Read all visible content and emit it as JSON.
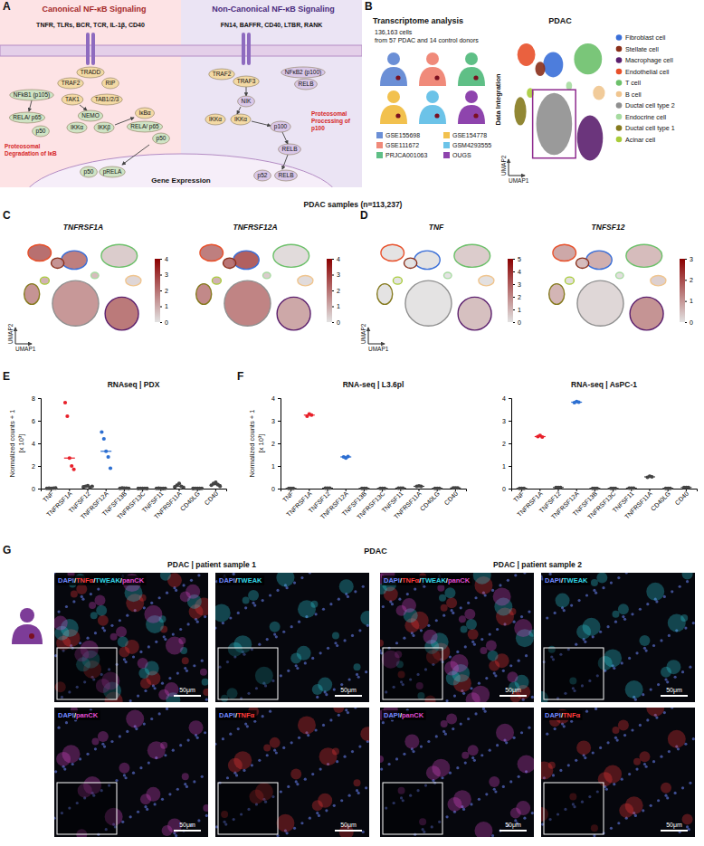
{
  "chart_data": [
    {
      "type": "dot",
      "title": "RNAseq | PDX",
      "ylabel": "Normalized counts + 1",
      "ylabel_unit": "[x 10³]",
      "categories": [
        "TNF",
        "TNFRSF1A",
        "TNFSF12",
        "TNFRSF12A",
        "TNFSF13B",
        "TNFRSF13C",
        "TNFSF11",
        "TNFRSF11A",
        "CD40LG",
        "CD40"
      ],
      "values": [
        [
          0.02,
          0.03,
          0.02,
          0.04,
          0.05
        ],
        [
          7.6,
          6.4,
          2.7,
          2.0,
          1.7
        ],
        [
          0.15,
          0.2,
          0.25,
          0.1,
          0.2
        ],
        [
          5.0,
          4.4,
          3.3,
          2.8,
          1.8
        ],
        [
          0.02,
          0.05,
          0.03,
          0.04,
          0.02
        ],
        [
          0.01,
          0.02,
          0.01,
          0.02,
          0.01
        ],
        [
          0.02,
          0.03,
          0.02,
          0.01,
          0.02
        ],
        [
          0.15,
          0.3,
          0.45,
          0.2,
          0.1
        ],
        [
          0.01,
          0.02,
          0.01,
          0.01,
          0.02
        ],
        [
          0.3,
          0.45,
          0.55,
          0.35,
          0.2
        ]
      ],
      "medians": [
        0.03,
        2.7,
        0.2,
        3.3,
        0.03,
        0.01,
        0.02,
        0.2,
        0.01,
        0.35
      ],
      "colors": [
        "#444444",
        "#e8202a",
        "#444444",
        "#2d6fd1",
        "#444444",
        "#444444",
        "#444444",
        "#444444",
        "#444444",
        "#444444"
      ],
      "ylim": [
        0,
        8
      ],
      "yticks": [
        0,
        2,
        4,
        6,
        8
      ]
    },
    {
      "type": "dot",
      "title": "RNA-seq | L3.6pl",
      "ylabel": "Normalized counts + 1",
      "ylabel_unit": "[x 10³]",
      "categories": [
        "TNF",
        "TNFRSF1A",
        "TNFSF12",
        "TNFRSF12A",
        "TNFSF13B",
        "TNFRSF13C",
        "TNFSF11",
        "TNFRSF11A",
        "CD40LG",
        "CD40"
      ],
      "values": [
        [
          0.01,
          0.01,
          0.01
        ],
        [
          3.2,
          3.3,
          3.25
        ],
        [
          0.02,
          0.02,
          0.02
        ],
        [
          1.4,
          1.35,
          1.42
        ],
        [
          0.01,
          0.01,
          0.01
        ],
        [
          0.01,
          0.01,
          0.01
        ],
        [
          0.02,
          0.02,
          0.02
        ],
        [
          0.1,
          0.12,
          0.1
        ],
        [
          0.01,
          0.01,
          0.01
        ],
        [
          0.03,
          0.03,
          0.03
        ]
      ],
      "medians": [
        0.01,
        3.25,
        0.02,
        1.4,
        0.01,
        0.01,
        0.02,
        0.1,
        0.01,
        0.03
      ],
      "colors": [
        "#444444",
        "#e8202a",
        "#444444",
        "#2d6fd1",
        "#444444",
        "#444444",
        "#444444",
        "#444444",
        "#444444",
        "#444444"
      ],
      "ylim": [
        0,
        4
      ],
      "yticks": [
        0,
        1,
        2,
        3,
        4
      ]
    },
    {
      "type": "dot",
      "title": "RNA-seq | AsPC-1",
      "categories": [
        "TNF",
        "TNFRSF1A",
        "TNFSF12",
        "TNFRSF12A",
        "TNFSF13B",
        "TNFRSF13C",
        "TNFSF11",
        "TNFRSF11A",
        "CD40LG",
        "CD40"
      ],
      "values": [
        [
          0.01,
          0.01,
          0.01
        ],
        [
          2.3,
          2.35,
          2.28
        ],
        [
          0.05,
          0.05,
          0.05
        ],
        [
          3.8,
          3.85,
          3.82
        ],
        [
          0.01,
          0.01,
          0.01
        ],
        [
          0.01,
          0.01,
          0.01
        ],
        [
          0.02,
          0.02,
          0.02
        ],
        [
          0.5,
          0.55,
          0.52
        ],
        [
          0.01,
          0.01,
          0.01
        ],
        [
          0.05,
          0.05,
          0.05
        ]
      ],
      "medians": [
        0.01,
        2.3,
        0.05,
        3.82,
        0.01,
        0.01,
        0.02,
        0.52,
        0.01,
        0.05
      ],
      "colors": [
        "#444444",
        "#e8202a",
        "#444444",
        "#2d6fd1",
        "#444444",
        "#444444",
        "#444444",
        "#444444",
        "#444444",
        "#444444"
      ],
      "ylim": [
        0,
        4
      ],
      "yticks": [
        0,
        1,
        2,
        3,
        4
      ]
    }
  ],
  "panel_letters": [
    "A",
    "B",
    "C",
    "D",
    "E",
    "F",
    "G"
  ],
  "pathway": {
    "canonical": {
      "title": "Canonical NF-κB Signaling",
      "ligands": "TNFR, TLRs, BCR, TCR, IL-1β, CD40",
      "nodes": [
        "TRADD",
        "TRAF2",
        "RIP",
        "TAK1",
        "TAB1/2/3",
        "NFkB1 (p105)",
        "RELA/ p65",
        "p50",
        "NEMO",
        "IKKα",
        "IKKβ",
        "IκBα",
        "RELA/ p65",
        "p50",
        "p50",
        "pRELA"
      ],
      "note": "Proteosomal Degradation of IκB"
    },
    "non_canonical": {
      "title": "Non-Canonical NF-κB Signaling",
      "ligands": "FN14, BAFFR, CD40, LTBR, RANK",
      "nodes": [
        "TRAF2",
        "TRAF3",
        "NIK",
        "IKKα",
        "IKKα",
        "NFκB2 (p100)",
        "RELB",
        "p100",
        "RELB",
        "p52",
        "RELB"
      ],
      "note": "Proteosomal Processing of p100"
    },
    "nucleus_label": "Gene Expression"
  },
  "transcriptome": {
    "title": "Transcriptome analysis",
    "description": [
      "136,163 cells",
      "from 57 PDAC and 14 control donors"
    ],
    "datasets": [
      {
        "name": "GSE155698",
        "color": "#6b8fd6"
      },
      {
        "name": "GSE111672",
        "color": "#f08a7a"
      },
      {
        "name": "PRJCA001063",
        "color": "#5fbf86"
      },
      {
        "name": "GSE154778",
        "color": "#f2c14e"
      },
      {
        "name": "GSM4293555",
        "color": "#6cc3e8"
      },
      {
        "name": "OUGS",
        "color": "#8e44ad"
      }
    ],
    "integration_label": "Data Integration",
    "umap_title": "PDAC",
    "x_label": "UMAP1",
    "y_label": "UMAP2",
    "xlim": [
      0,
      10
    ],
    "ylim": [
      0,
      10
    ],
    "clusters": [
      {
        "name": "Fibroblast cell",
        "color": "#3a6fd8",
        "cx": 4.3,
        "cy": 7.6,
        "rx": 1.0,
        "ry": 0.9
      },
      {
        "name": "Stellate cell",
        "color": "#8a2f1a",
        "cx": 3.0,
        "cy": 7.3,
        "rx": 0.5,
        "ry": 0.5
      },
      {
        "name": "Macrophage cell",
        "color": "#5b1f6e",
        "cx": 8.0,
        "cy": 2.4,
        "rx": 1.3,
        "ry": 1.6
      },
      {
        "name": "Endothelial cell",
        "color": "#e8502a",
        "cx": 1.6,
        "cy": 8.3,
        "rx": 0.9,
        "ry": 0.8
      },
      {
        "name": "T cell",
        "color": "#6cc06a",
        "cx": 7.8,
        "cy": 8.0,
        "rx": 1.4,
        "ry": 1.1
      },
      {
        "name": "B cell",
        "color": "#f0c58f",
        "cx": 8.9,
        "cy": 5.6,
        "rx": 0.6,
        "ry": 0.5
      },
      {
        "name": "Ductal cell type 2",
        "color": "#8f8f8f",
        "cx": 4.4,
        "cy": 3.4,
        "rx": 1.8,
        "ry": 2.2
      },
      {
        "name": "Endocrine cell",
        "color": "#a6dba0",
        "cx": 5.9,
        "cy": 6.1,
        "rx": 0.3,
        "ry": 0.3
      },
      {
        "name": "Ductal cell type 1",
        "color": "#857a1e",
        "cx": 1.0,
        "cy": 4.3,
        "rx": 0.6,
        "ry": 1.0
      },
      {
        "name": "Acinar cell",
        "color": "#a9cc3a",
        "cx": 2.0,
        "cy": 5.6,
        "rx": 0.35,
        "ry": 0.35
      }
    ]
  },
  "feature_plots": {
    "title": "PDAC samples (n=113,237)",
    "plots": [
      {
        "gene": "TNFRSF1A",
        "colorbar_lim": [
          0,
          4
        ],
        "colorbar_ticks": [
          0,
          1,
          2,
          3,
          4
        ],
        "values": [
          2.0,
          1.6,
          2.1,
          2.3,
          0.5,
          0.3,
          1.5,
          0.8,
          1.6,
          1.0
        ]
      },
      {
        "gene": "TNFRSF12A",
        "colorbar_lim": [
          0,
          4
        ],
        "colorbar_ticks": [
          0,
          1,
          2,
          3,
          4
        ],
        "values": [
          2.6,
          2.2,
          1.2,
          2.0,
          0.2,
          0.2,
          1.9,
          0.5,
          1.8,
          1.0
        ]
      },
      {
        "gene": "TNF",
        "colorbar_lim": [
          0,
          5
        ],
        "colorbar_ticks": [
          0,
          1,
          2,
          3,
          4,
          5
        ],
        "values": [
          0.05,
          0.05,
          0.9,
          0.05,
          0.6,
          0.1,
          0.05,
          0.05,
          0.05,
          0.05
        ]
      },
      {
        "gene": "TNFSF12",
        "colorbar_lim": [
          0,
          3
        ],
        "colorbar_ticks": [
          0,
          1,
          2,
          3
        ],
        "values": [
          0.8,
          0.6,
          1.2,
          0.9,
          0.6,
          0.3,
          0.2,
          0.1,
          0.7,
          0.1
        ]
      }
    ]
  },
  "immunofluorescence": {
    "title": "PDAC",
    "scale_bar": "50μm",
    "channel_colors": {
      "DAPI": "#7088ff",
      "TNFα": "#ff3b3b",
      "TWEAK": "#33d6e6",
      "panCK": "#e04cd0"
    },
    "samples": [
      {
        "title": "PDAC | patient sample 1",
        "images": [
          "DAPI/TNFα/TWEAK/panCK",
          "DAPI/TWEAK",
          "DAPI/panCK",
          "DAPI/TNFα"
        ]
      },
      {
        "title": "PDAC | patient sample 2",
        "images": [
          "DAPI/TNFα/TWEAK/panCK",
          "DAPI/TWEAK",
          "DAPI/panCK",
          "DAPI/TNFα"
        ]
      }
    ]
  }
}
